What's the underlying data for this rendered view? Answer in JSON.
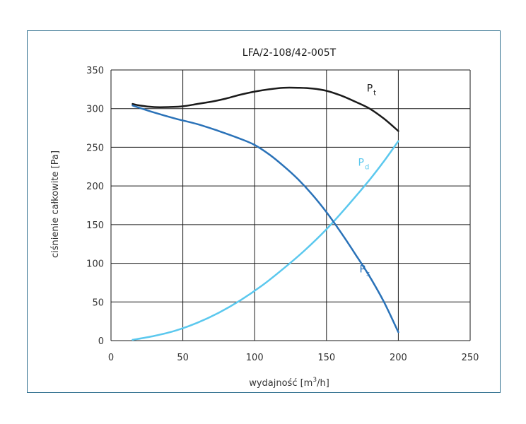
{
  "chart_data": {
    "type": "line",
    "title": "LFA/2-108/42-005T",
    "xlabel_main": "wydajność [m",
    "xlabel_sup": "3",
    "xlabel_end": "/h]",
    "ylabel": "ciśnienie całkowite [Pa]",
    "xlim": [
      0,
      250
    ],
    "ylim": [
      0,
      350
    ],
    "xticks": [
      0,
      50,
      100,
      150,
      200,
      250
    ],
    "yticks": [
      0,
      50,
      100,
      150,
      200,
      250,
      300,
      350
    ],
    "grid": true,
    "series": [
      {
        "name": "Pt",
        "label_main": "P",
        "label_sub": "t",
        "color": "#1a1a1a",
        "points": [
          [
            15,
            306
          ],
          [
            20,
            304
          ],
          [
            30,
            302
          ],
          [
            40,
            302
          ],
          [
            50,
            303
          ],
          [
            60,
            306
          ],
          [
            70,
            309
          ],
          [
            80,
            313
          ],
          [
            90,
            318
          ],
          [
            100,
            322
          ],
          [
            110,
            325
          ],
          [
            120,
            327
          ],
          [
            130,
            327
          ],
          [
            140,
            326
          ],
          [
            150,
            323
          ],
          [
            160,
            317
          ],
          [
            170,
            309
          ],
          [
            180,
            300
          ],
          [
            190,
            287
          ],
          [
            200,
            271
          ]
        ]
      },
      {
        "name": "Pd",
        "label_main": "P",
        "label_sub": "d",
        "color": "#5bc8ee",
        "points": [
          [
            15,
            1
          ],
          [
            30,
            6
          ],
          [
            45,
            13
          ],
          [
            60,
            23
          ],
          [
            75,
            36
          ],
          [
            90,
            52
          ],
          [
            105,
            71
          ],
          [
            120,
            93
          ],
          [
            135,
            117
          ],
          [
            150,
            144
          ],
          [
            165,
            175
          ],
          [
            180,
            208
          ],
          [
            190,
            232
          ],
          [
            200,
            258
          ]
        ]
      },
      {
        "name": "Ps",
        "label_main": "P",
        "label_sub": "s",
        "color": "#2a72b8",
        "points": [
          [
            15,
            304
          ],
          [
            30,
            295
          ],
          [
            45,
            287
          ],
          [
            60,
            280
          ],
          [
            75,
            271
          ],
          [
            90,
            261
          ],
          [
            100,
            253
          ],
          [
            110,
            241
          ],
          [
            120,
            226
          ],
          [
            130,
            209
          ],
          [
            140,
            189
          ],
          [
            150,
            166
          ],
          [
            160,
            140
          ],
          [
            170,
            112
          ],
          [
            180,
            83
          ],
          [
            190,
            50
          ],
          [
            200,
            11
          ]
        ]
      }
    ]
  }
}
